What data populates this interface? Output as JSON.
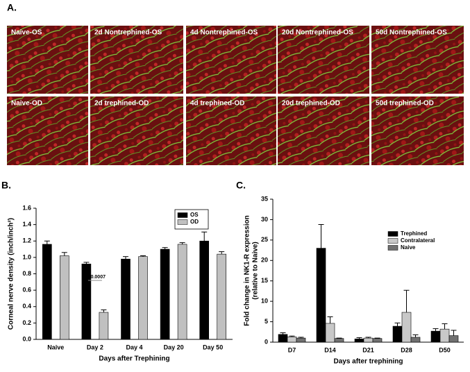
{
  "panel_a": {
    "label": "A.",
    "images": [
      [
        "Naive-OS",
        "2d Nontrephined-OS",
        "4d Nontrephined-OS",
        "20d Nontrephined-OS",
        "50d Nontrephined-OS"
      ],
      [
        "Naive-OD",
        "2d trephined-OD",
        "4d trephined-OD",
        "20d trephined-OD",
        "50d trephined-OD"
      ]
    ]
  },
  "chart_data": [
    {
      "type": "bar",
      "label": "B.",
      "y_label": "Corneal nerve density (inch/inch²)",
      "x_label": "Days after Trephining",
      "categories": [
        "Naive",
        "Day 2",
        "Day 4",
        "Day 20",
        "Day 50"
      ],
      "series": [
        {
          "name": "OS",
          "color": "#000000",
          "values": [
            1.16,
            0.92,
            0.98,
            1.1,
            1.2
          ],
          "errors": [
            0.04,
            0.02,
            0.03,
            0.02,
            0.11
          ]
        },
        {
          "name": "OD",
          "color": "#c0c0c0",
          "values": [
            1.02,
            0.33,
            1.01,
            1.16,
            1.04
          ],
          "errors": [
            0.04,
            0.03,
            0.01,
            0.02,
            0.03
          ]
        }
      ],
      "ylim": [
        0,
        1.6
      ],
      "yticks": [
        {
          "value": 0,
          "label": "0.0"
        },
        0.2,
        0.4,
        0.6,
        0.8,
        {
          "value": 1,
          "label": "1.0"
        },
        1.2,
        1.4,
        1.6
      ],
      "annotation": "P=0.0007",
      "legend": "upper right"
    },
    {
      "type": "bar",
      "label": "C.",
      "y_label": [
        "Fold change in NK1-R expression",
        "(relative to Naive)"
      ],
      "x_label": "Days after trephining",
      "categories": [
        "D7",
        "D14",
        "D21",
        "D28",
        "D50"
      ],
      "series": [
        {
          "name": "Trephined",
          "color": "#000000",
          "values": [
            1.9,
            23.0,
            0.8,
            3.9,
            2.7
          ],
          "errors": [
            0.4,
            5.8,
            0.3,
            0.8,
            0.6
          ]
        },
        {
          "name": "Contralateral",
          "color": "#c8c8c8",
          "values": [
            1.3,
            4.6,
            1.0,
            7.3,
            3.2
          ],
          "errors": [
            0.2,
            1.6,
            0.2,
            5.4,
            1.3
          ]
        },
        {
          "name": "Naive",
          "color": "#707070",
          "values": [
            1.0,
            0.9,
            0.9,
            1.2,
            1.6
          ],
          "errors": [
            0.2,
            0.1,
            0.1,
            0.6,
            1.3
          ]
        }
      ],
      "ylim": [
        0,
        35
      ],
      "yticks": [
        0,
        5,
        10,
        15,
        20,
        25,
        30,
        35
      ],
      "legend": "upper right"
    }
  ]
}
